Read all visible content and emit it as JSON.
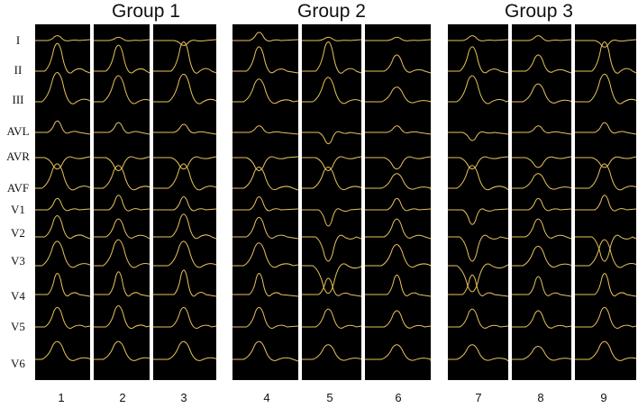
{
  "groups": [
    {
      "title": "Group 1",
      "panels": [
        "1",
        "2",
        "3"
      ]
    },
    {
      "title": "Group 2",
      "panels": [
        "4",
        "5",
        "6"
      ]
    },
    {
      "title": "Group 3",
      "panels": [
        "7",
        "8",
        "9"
      ]
    }
  ],
  "leads": [
    "I",
    "II",
    "III",
    "AVL",
    "AVR",
    "AVF",
    "V1",
    "V2",
    "V3",
    "V4",
    "V5",
    "V6"
  ],
  "colors": {
    "background": "#000000",
    "trace": "#e8c35a",
    "text": "#111111"
  }
}
